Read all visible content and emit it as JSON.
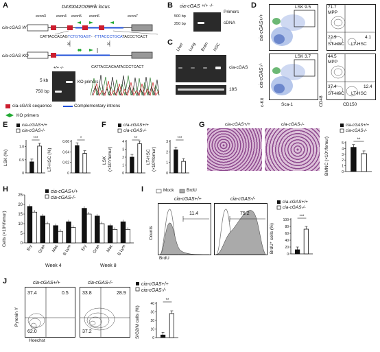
{
  "panels": {
    "A": {
      "letter": "A",
      "locus_title": "D430042O09Rik locus",
      "wt_label": "cia-cGAS WT",
      "ko_label": "cia-cGAS KO",
      "exons": [
        "exon3",
        "exon4",
        "exon5",
        "exon6",
        "exon7"
      ],
      "wt_seq_left": "CATTACCACAG",
      "wt_seq_mid1": "TCTGTGAGT",
      "wt_seq_mid2": "TTTACCCTGCA",
      "wt_seq_right": "TACCCTCACT",
      "ko_seq": "CATTACCACAATACCCTCACT",
      "gel_header": "+/+  -/-",
      "gel_5kb": "5 kb",
      "gel_750bp": "750 bp",
      "gel_note": "KO primers",
      "legend1": "cia-cGAS sequence",
      "legend2": "Complementary introns",
      "legend3": "KO primers"
    },
    "B": {
      "letter": "B",
      "title": "cia-cGAS",
      "genotypes": "+/+  -/-",
      "primers": "Primers",
      "m500": "500 bp",
      "m250": "250 bp",
      "cdna": "cDNA",
      "lanes": "+  -  +  -"
    },
    "C": {
      "letter": "C",
      "tissues": [
        "Liver",
        "Lung",
        "Brain",
        "HSC"
      ],
      "lane_text": "+/+ -/-",
      "gene": "cia-cGAS",
      "ref": "18S"
    },
    "D": {
      "letter": "D",
      "row1": "cia-cGAS+/+",
      "row2": "cia-cGAS-/-",
      "gate_top": "LSK 9.5",
      "gate_bot": "LSK 3.7",
      "xlab1": "Sca-1",
      "ylab1": "c-Kit",
      "xlab2": "CD150",
      "ylab2": "CD48",
      "q_top": [
        "71.7",
        "MPP",
        "22.9",
        "ST-HSC",
        "4.1",
        "LT-HSC"
      ],
      "q_bot": [
        "44.5",
        "MPP",
        "37.4",
        "ST-HSC",
        "12.4",
        "LT-HSC"
      ]
    },
    "E": {
      "letter": "E",
      "legend": [
        "cia-cGAS+/+",
        "cia-cGAS-/-"
      ],
      "ylab1": "LSK (%)",
      "ylab2": "LT-HSC (%)",
      "sig1": "***",
      "sig2": "*",
      "ticks1": [
        "0",
        "0.5",
        "1.0"
      ],
      "ticks2": [
        "0",
        "0.02",
        "0.04",
        "0.06"
      ]
    },
    "F": {
      "letter": "F",
      "legend": [
        "cia-cGAS+/+",
        "cia-cGAS-/-"
      ],
      "ylab1": "LSK",
      "ylab1b": "(×10⁵/femur)",
      "ylab2": "LT-HSC",
      "ylab2b": "(×10³/femur)",
      "sig1": "**",
      "sig2": "***",
      "ticks1": [
        "0",
        "1",
        "2",
        "3",
        "4"
      ],
      "ticks2": [
        "0",
        "1",
        "2",
        "3"
      ]
    },
    "G": {
      "letter": "G",
      "img1": "cia-cGAS+/+",
      "img2": "cia-cGAS-/-",
      "legend": [
        "cia-cGAS+/+",
        "cia-cGAS-/-"
      ],
      "ylab": "BMNC (×10⁷/femur)",
      "sig": "**",
      "ticks": [
        "0",
        "1",
        "2",
        "3",
        "4",
        "5"
      ]
    },
    "H": {
      "letter": "H",
      "legend": [
        "cia-cGAS+/+",
        "cia-cGAS-/-"
      ],
      "ylab": "Cells (×10⁶/femur)",
      "cats": [
        "Ery",
        "Gran",
        "Mac",
        "B Lym",
        "Ery",
        "Gran",
        "Mac",
        "B Lym"
      ],
      "week4": "Week 4",
      "week8": "Week 8",
      "ticks": [
        "0",
        "5",
        "10",
        "15",
        "20",
        "25"
      ]
    },
    "I": {
      "letter": "I",
      "mock": "Mock",
      "brdu": "BrdU",
      "t1": "cia-cGAS+/+",
      "t2": "cia-cGAS-/-",
      "v1": "11.4",
      "v2": "75.2",
      "ylab": "Counts",
      "xlab": "BrdU",
      "legend": [
        "cia-cGAS+/+",
        "cia-cGAS-/-"
      ],
      "bar_ylab": "BrdU⁺ cells (%)",
      "sig": "***",
      "ticks": [
        "0",
        "20",
        "40",
        "60",
        "80",
        "100"
      ]
    },
    "J": {
      "letter": "J",
      "t1": "cia-cGAS+/+",
      "t2": "cia-cGAS-/-",
      "q1": [
        "37.4",
        "0.5",
        "62.0"
      ],
      "q2": [
        "33.8",
        "28.9",
        "37.2"
      ],
      "ylab": "Pyronin Y",
      "xlab": "Hoechst",
      "legend": [
        "cia-cGAS+/+",
        "cia-cGAS-/-"
      ],
      "bar_ylab": "S/G2/M cells (%)",
      "sig": "**",
      "ticks": [
        "0",
        "10",
        "20",
        "30",
        "40"
      ]
    }
  },
  "chart_data": [
    {
      "type": "bar",
      "panel": "E-left",
      "categories": [
        "cia-cGAS+/+",
        "cia-cGAS-/-"
      ],
      "values": [
        0.42,
        1.02
      ],
      "ylabel": "LSK (%)",
      "ylim": [
        0,
        1.2
      ]
    },
    {
      "type": "bar",
      "panel": "E-right",
      "categories": [
        "cia-cGAS+/+",
        "cia-cGAS-/-"
      ],
      "values": [
        0.052,
        0.037
      ],
      "ylabel": "LT-HSC (%)",
      "ylim": [
        0,
        0.06
      ]
    },
    {
      "type": "bar",
      "panel": "F-left",
      "categories": [
        "cia-cGAS+/+",
        "cia-cGAS-/-"
      ],
      "values": [
        2.0,
        3.7
      ],
      "ylabel": "LSK (×10⁵/femur)",
      "ylim": [
        0,
        4
      ]
    },
    {
      "type": "bar",
      "panel": "F-right",
      "categories": [
        "cia-cGAS+/+",
        "cia-cGAS-/-"
      ],
      "values": [
        2.2,
        1.1
      ],
      "ylabel": "LT-HSC (×10³/femur)",
      "ylim": [
        0,
        3
      ]
    },
    {
      "type": "bar",
      "panel": "G",
      "categories": [
        "cia-cGAS+/+",
        "cia-cGAS-/-"
      ],
      "values": [
        4.2,
        3.1
      ],
      "ylabel": "BMNC (×10⁷/femur)",
      "ylim": [
        0,
        5
      ]
    },
    {
      "type": "bar",
      "panel": "H",
      "categories": [
        "Ery",
        "Gran",
        "Mac",
        "B Lym",
        "Ery",
        "Gran",
        "Mac",
        "B Lym"
      ],
      "series": [
        {
          "name": "cia-cGAS+/+",
          "values": [
            19,
            14,
            9,
            11,
            18,
            14,
            9,
            11
          ]
        },
        {
          "name": "cia-cGAS-/-",
          "values": [
            16,
            10,
            6,
            8,
            15,
            10,
            7,
            7
          ]
        }
      ],
      "ylabel": "Cells (×10⁶/femur)",
      "ylim": [
        0,
        25
      ]
    },
    {
      "type": "bar",
      "panel": "I",
      "categories": [
        "cia-cGAS+/+",
        "cia-cGAS-/-"
      ],
      "values": [
        12,
        72
      ],
      "ylabel": "BrdU⁺ cells (%)",
      "ylim": [
        0,
        100
      ]
    },
    {
      "type": "bar",
      "panel": "J",
      "categories": [
        "cia-cGAS+/+",
        "cia-cGAS-/-"
      ],
      "values": [
        3,
        28
      ],
      "ylabel": "S/G2/M cells (%)",
      "ylim": [
        0,
        40
      ]
    }
  ]
}
